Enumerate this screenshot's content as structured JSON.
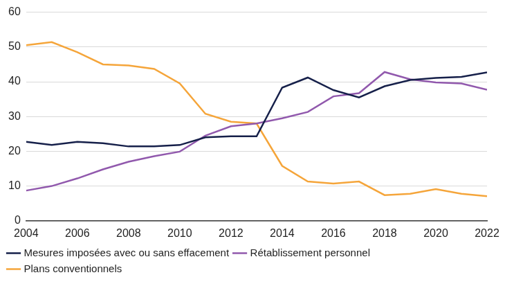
{
  "chart_data": {
    "type": "line",
    "x": [
      2004,
      2005,
      2006,
      2007,
      2008,
      2009,
      2010,
      2011,
      2012,
      2013,
      2014,
      2015,
      2016,
      2017,
      2018,
      2019,
      2020,
      2021,
      2022
    ],
    "series": [
      {
        "name": "Mesures imposées avec ou sans effacement",
        "color": "#16204a",
        "values": [
          22.7,
          21.8,
          22.7,
          22.3,
          21.4,
          21.4,
          21.8,
          24.0,
          24.3,
          24.3,
          38.3,
          41.2,
          37.6,
          35.5,
          38.7,
          40.5,
          41.1,
          41.4,
          42.7
        ]
      },
      {
        "name": "Rétablissement personnel",
        "color": "#9159ad",
        "values": [
          8.7,
          10.0,
          12.2,
          14.8,
          17.0,
          18.6,
          19.9,
          24.5,
          27.2,
          28.0,
          29.5,
          31.3,
          35.8,
          36.7,
          42.8,
          40.7,
          39.8,
          39.5,
          37.7
        ]
      },
      {
        "name": "Plans conventionnels",
        "color": "#f5a53a",
        "values": [
          50.5,
          51.4,
          48.5,
          45.0,
          44.7,
          43.7,
          39.5,
          30.8,
          28.5,
          28.0,
          15.8,
          11.3,
          10.7,
          11.3,
          7.4,
          7.8,
          9.1,
          7.8,
          7.1
        ]
      }
    ],
    "xlim": [
      2004,
      2022
    ],
    "xticks": [
      2004,
      2006,
      2008,
      2010,
      2012,
      2014,
      2016,
      2018,
      2020,
      2022
    ],
    "ylim": [
      0,
      60
    ],
    "yticks": [
      0,
      10,
      20,
      30,
      40,
      50,
      60
    ],
    "grid": true,
    "legend": "bottom-left",
    "marker": "none",
    "line_style": "solid"
  }
}
